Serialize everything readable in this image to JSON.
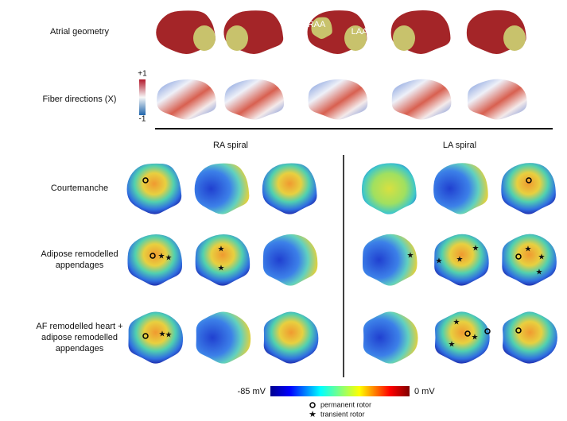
{
  "rows": [
    {
      "lines": [
        "Atrial geometry"
      ]
    },
    {
      "lines": [
        "Fiber directions (X)"
      ]
    },
    {
      "lines": [
        "Courtemanche"
      ]
    },
    {
      "lines": [
        "Adipose remodelled",
        "appendages"
      ]
    },
    {
      "lines": [
        "AF remodelled heart +",
        "adipose remodelled",
        "appendages"
      ]
    }
  ],
  "geometry_labels": [
    "RAA",
    "LAA"
  ],
  "fiber_scale": {
    "max": "+1",
    "min": "-1"
  },
  "columns": [
    "RA spiral",
    "LA spiral"
  ],
  "voltage_scale": {
    "min": "-85 mV",
    "max": "0 mV"
  },
  "legend": [
    "permanent rotor",
    "transient rotor"
  ]
}
